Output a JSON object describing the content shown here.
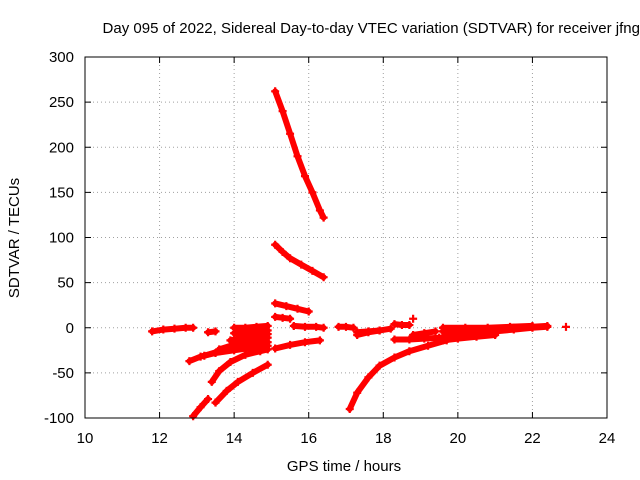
{
  "chart_data": {
    "type": "scatter",
    "title": "Day 095 of 2022, Sidereal Day-to-day VTEC variation (SDTVAR) for receiver jfng",
    "xlabel": "GPS time / hours",
    "ylabel": "SDTVAR / TECUs",
    "xlim": [
      10,
      24
    ],
    "ylim": [
      -100,
      300
    ],
    "xticks": [
      10,
      12,
      14,
      16,
      18,
      20,
      22,
      24
    ],
    "yticks": [
      -100,
      -50,
      0,
      50,
      100,
      150,
      200,
      250,
      300
    ],
    "grid": true,
    "marker": "plus",
    "color": "#ff0000",
    "series": [
      {
        "points": [
          [
            15.1,
            262
          ],
          [
            15.3,
            240
          ],
          [
            15.5,
            215
          ],
          [
            15.7,
            190
          ],
          [
            15.9,
            168
          ],
          [
            16.1,
            150
          ],
          [
            16.3,
            130
          ],
          [
            16.4,
            122
          ]
        ]
      },
      {
        "points": [
          [
            15.1,
            92
          ],
          [
            15.3,
            84
          ],
          [
            15.5,
            77
          ],
          [
            15.8,
            70
          ],
          [
            16.1,
            63
          ],
          [
            16.4,
            56
          ]
        ]
      },
      {
        "points": [
          [
            15.1,
            27
          ],
          [
            15.4,
            24
          ],
          [
            15.7,
            21
          ],
          [
            16.0,
            18
          ]
        ]
      },
      {
        "points": [
          [
            15.1,
            12
          ],
          [
            15.3,
            11
          ],
          [
            15.5,
            10
          ]
        ]
      },
      {
        "points": [
          [
            15.6,
            2
          ],
          [
            15.9,
            1
          ],
          [
            16.2,
            1
          ],
          [
            16.4,
            0
          ]
        ]
      },
      {
        "points": [
          [
            16.8,
            1
          ],
          [
            17.0,
            1
          ],
          [
            17.2,
            0
          ]
        ]
      },
      {
        "points": [
          [
            11.8,
            -4
          ],
          [
            12.1,
            -2
          ],
          [
            12.4,
            -1
          ],
          [
            12.7,
            0
          ],
          [
            12.9,
            0
          ]
        ]
      },
      {
        "points": [
          [
            13.3,
            -5
          ],
          [
            13.5,
            -4
          ]
        ]
      },
      {
        "points": [
          [
            14.0,
            0
          ],
          [
            14.3,
            0
          ],
          [
            14.6,
            1
          ],
          [
            14.9,
            2
          ]
        ]
      },
      {
        "points": [
          [
            14.0,
            -6
          ],
          [
            14.3,
            -5
          ],
          [
            14.6,
            -4
          ],
          [
            14.9,
            -3
          ]
        ]
      },
      {
        "points": [
          [
            13.9,
            -14
          ],
          [
            14.2,
            -11
          ],
          [
            14.5,
            -9
          ],
          [
            14.9,
            -7
          ]
        ]
      },
      {
        "points": [
          [
            13.6,
            -24
          ],
          [
            13.9,
            -20
          ],
          [
            14.2,
            -17
          ],
          [
            14.5,
            -14
          ],
          [
            14.9,
            -11
          ]
        ]
      },
      {
        "points": [
          [
            13.2,
            -31
          ],
          [
            13.6,
            -26
          ],
          [
            14.0,
            -22
          ],
          [
            14.4,
            -19
          ],
          [
            14.9,
            -16
          ]
        ]
      },
      {
        "points": [
          [
            12.8,
            -37
          ],
          [
            13.1,
            -32
          ],
          [
            13.5,
            -28
          ],
          [
            14.0,
            -25
          ],
          [
            14.5,
            -22
          ],
          [
            14.9,
            -20
          ]
        ]
      },
      {
        "points": [
          [
            13.4,
            -60
          ],
          [
            13.6,
            -48
          ],
          [
            13.9,
            -38
          ],
          [
            14.3,
            -30
          ],
          [
            14.7,
            -26
          ],
          [
            14.9,
            -24
          ]
        ]
      },
      {
        "points": [
          [
            15.1,
            -23
          ],
          [
            15.5,
            -19
          ],
          [
            15.9,
            -16
          ],
          [
            16.3,
            -14
          ]
        ]
      },
      {
        "points": [
          [
            13.5,
            -83
          ],
          [
            13.8,
            -70
          ],
          [
            14.1,
            -60
          ],
          [
            14.5,
            -50
          ],
          [
            14.9,
            -41
          ]
        ]
      },
      {
        "points": [
          [
            12.9,
            -98
          ],
          [
            13.1,
            -88
          ],
          [
            13.3,
            -79
          ]
        ]
      },
      {
        "points": [
          [
            17.1,
            -90
          ],
          [
            17.3,
            -72
          ],
          [
            17.6,
            -55
          ],
          [
            17.9,
            -42
          ],
          [
            18.3,
            -33
          ],
          [
            18.7,
            -26
          ],
          [
            19.2,
            -20
          ],
          [
            19.7,
            -14
          ]
        ]
      },
      {
        "points": [
          [
            17.3,
            -8
          ],
          [
            17.6,
            -5
          ],
          [
            17.9,
            -3
          ],
          [
            18.2,
            -1
          ]
        ]
      },
      {
        "points": [
          [
            17.3,
            -5
          ],
          [
            17.6,
            -4
          ],
          [
            17.9,
            -3
          ]
        ]
      },
      {
        "points": [
          [
            18.3,
            4
          ],
          [
            18.5,
            3
          ],
          [
            18.7,
            3
          ]
        ]
      },
      {
        "points": [
          [
            18.8,
            10
          ]
        ]
      },
      {
        "points": [
          [
            18.3,
            -13
          ],
          [
            18.7,
            -13
          ],
          [
            19.1,
            -12
          ],
          [
            19.5,
            -11
          ]
        ]
      },
      {
        "points": [
          [
            18.8,
            -8
          ],
          [
            19.1,
            -6
          ],
          [
            19.4,
            -4
          ]
        ]
      },
      {
        "points": [
          [
            19.6,
            -10
          ],
          [
            20.0,
            -8
          ],
          [
            20.5,
            -6
          ],
          [
            21.0,
            -4
          ],
          [
            21.5,
            -2
          ],
          [
            22.0,
            0
          ],
          [
            22.4,
            1
          ]
        ]
      },
      {
        "points": [
          [
            19.6,
            -4
          ],
          [
            20.0,
            -3
          ],
          [
            20.5,
            -2
          ],
          [
            21.0,
            -1
          ],
          [
            21.5,
            0
          ],
          [
            22.0,
            1
          ],
          [
            22.4,
            2
          ]
        ]
      },
      {
        "points": [
          [
            19.6,
            0
          ],
          [
            20.2,
            0
          ],
          [
            20.8,
            0
          ],
          [
            21.4,
            1
          ],
          [
            22.0,
            2
          ]
        ]
      },
      {
        "points": [
          [
            19.6,
            -14
          ],
          [
            20.0,
            -12
          ],
          [
            20.5,
            -10
          ],
          [
            21.0,
            -8
          ]
        ]
      },
      {
        "points": [
          [
            22.9,
            1
          ]
        ]
      }
    ]
  }
}
